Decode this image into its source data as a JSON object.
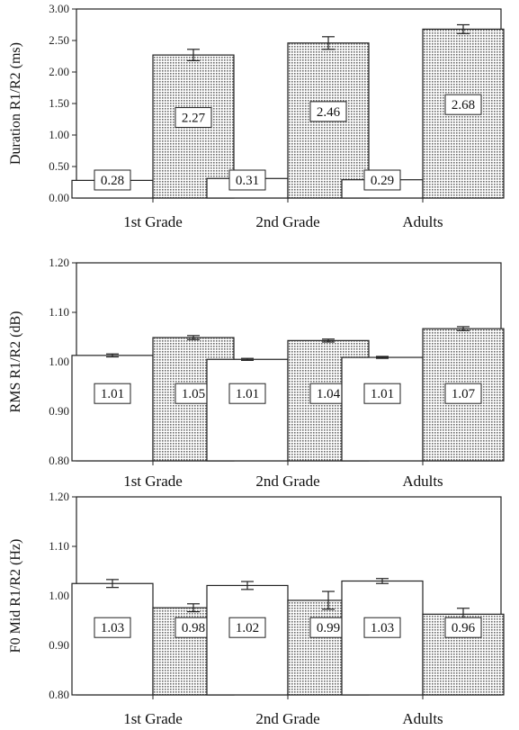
{
  "chart_data": [
    {
      "type": "bar",
      "ylabel": "Duration R1/R2 (ms)",
      "ylim": [
        0,
        3
      ],
      "yticks": [
        "0.00",
        "0.50",
        "1.00",
        "1.50",
        "2.00",
        "2.50",
        "3.00"
      ],
      "categories": [
        "1st Grade",
        "2nd Grade",
        "Adults"
      ],
      "series": [
        {
          "pattern": "plain",
          "values": [
            0.28,
            0.31,
            0.29
          ],
          "errors": [
            0.02,
            0.02,
            0.02
          ],
          "labels": [
            "0.28",
            "0.31",
            "0.29"
          ]
        },
        {
          "pattern": "dotted",
          "values": [
            2.27,
            2.46,
            2.68
          ],
          "errors": [
            0.09,
            0.1,
            0.07
          ],
          "labels": [
            "2.27",
            "2.46",
            "2.68"
          ]
        }
      ],
      "grid": false
    },
    {
      "type": "bar",
      "ylabel": "RMS R1/R2 (dB)",
      "ylim": [
        0.8,
        1.2
      ],
      "yticks": [
        "0.80",
        "0.90",
        "1.00",
        "1.10",
        "1.20"
      ],
      "categories": [
        "1st Grade",
        "2nd Grade",
        "Adults"
      ],
      "series": [
        {
          "pattern": "plain",
          "values": [
            1.013,
            1.005,
            1.009
          ],
          "errors": [
            0.003,
            0.002,
            0.002
          ],
          "labels": [
            "1.01",
            "1.01",
            "1.01"
          ]
        },
        {
          "pattern": "dotted",
          "values": [
            1.049,
            1.043,
            1.067
          ],
          "errors": [
            0.004,
            0.003,
            0.004
          ],
          "labels": [
            "1.05",
            "1.04",
            "1.07"
          ]
        }
      ],
      "grid": false
    },
    {
      "type": "bar",
      "ylabel": "F0 Mid R1/R2 (Hz)",
      "ylim": [
        0.8,
        1.2
      ],
      "yticks": [
        "0.80",
        "0.90",
        "1.00",
        "1.10",
        "1.20"
      ],
      "categories": [
        "1st Grade",
        "2nd Grade",
        "Adults"
      ],
      "series": [
        {
          "pattern": "plain",
          "values": [
            1.025,
            1.021,
            1.03
          ],
          "errors": [
            0.008,
            0.008,
            0.005
          ],
          "labels": [
            "1.03",
            "1.02",
            "1.03"
          ]
        },
        {
          "pattern": "dotted",
          "values": [
            0.976,
            0.991,
            0.963
          ],
          "errors": [
            0.008,
            0.018,
            0.012
          ],
          "labels": [
            "0.98",
            "0.99",
            "0.96"
          ]
        }
      ],
      "grid": false
    }
  ]
}
